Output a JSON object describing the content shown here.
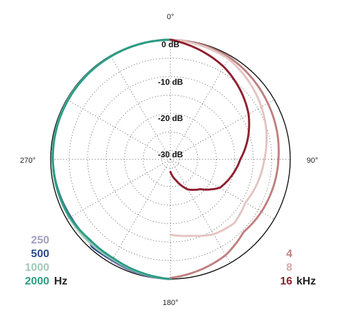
{
  "chart_data": {
    "type": "polar",
    "angle_labels": [
      "0°",
      "90°",
      "180°",
      "270°"
    ],
    "radial_labels": [
      "0 dB",
      "-10 dB",
      "-20 dB",
      "-30 dB"
    ],
    "radial_range_db": [
      -40,
      0
    ],
    "angle_step_deg": 30,
    "left_series_unit": "Hz",
    "right_series_unit": "kHz",
    "left_series": [
      {
        "label": "250",
        "color": "#9fa0c4",
        "points_deg_db": [
          [
            180,
            0
          ],
          [
            210,
            -0.7
          ],
          [
            225,
            -1.1
          ],
          [
            240,
            -1.3
          ],
          [
            270,
            -0.5
          ],
          [
            300,
            -0.3
          ],
          [
            330,
            -0.2
          ],
          [
            360,
            0
          ]
        ]
      },
      {
        "label": "500",
        "color": "#2a4a8c",
        "points_deg_db": [
          [
            180,
            0
          ],
          [
            210,
            -1.0
          ],
          [
            222,
            -0.6
          ],
          [
            225,
            -1.4
          ],
          [
            240,
            -1.2
          ],
          [
            270,
            -0.5
          ],
          [
            300,
            -0.3
          ],
          [
            330,
            -0.2
          ],
          [
            360,
            0
          ]
        ]
      },
      {
        "label": "1000",
        "color": "#9ecbb9",
        "points_deg_db": [
          [
            180,
            0
          ],
          [
            210,
            -1.2
          ],
          [
            225,
            -1.0
          ],
          [
            240,
            -0.8
          ],
          [
            270,
            -0.5
          ],
          [
            300,
            -0.3
          ],
          [
            330,
            -0.2
          ],
          [
            360,
            0
          ]
        ]
      },
      {
        "label": "2000",
        "color": "#2a9d84",
        "points_deg_db": [
          [
            180,
            0
          ],
          [
            210,
            -1.5
          ],
          [
            225,
            -1.6
          ],
          [
            240,
            -1.0
          ],
          [
            270,
            -0.6
          ],
          [
            300,
            -0.4
          ],
          [
            330,
            -0.2
          ],
          [
            360,
            0
          ]
        ]
      }
    ],
    "right_series": [
      {
        "label": "4",
        "color": "#c08080",
        "points_deg_db": [
          [
            0,
            0
          ],
          [
            30,
            -0.5
          ],
          [
            60,
            -2.0
          ],
          [
            90,
            -3.2
          ],
          [
            120,
            -4.0
          ],
          [
            135,
            -4.5
          ],
          [
            150,
            -2.5
          ],
          [
            180,
            -0.3
          ]
        ]
      },
      {
        "label": "8",
        "color": "#e3c4c1",
        "points_deg_db": [
          [
            0,
            0
          ],
          [
            30,
            -1.0
          ],
          [
            60,
            -4.0
          ],
          [
            90,
            -7.0
          ],
          [
            120,
            -9.0
          ],
          [
            135,
            -8.0
          ],
          [
            150,
            -9.0
          ],
          [
            165,
            -11.0
          ],
          [
            180,
            -12.0
          ]
        ]
      },
      {
        "label": "16",
        "color": "#8f1f2f",
        "points_deg_db": [
          [
            0,
            0
          ],
          [
            30,
            -3.5
          ],
          [
            60,
            -8.0
          ],
          [
            90,
            -13.5
          ],
          [
            120,
            -17.0
          ],
          [
            135,
            -21.0
          ],
          [
            150,
            -23.0
          ],
          [
            165,
            -26.5
          ],
          [
            180,
            -29.0
          ]
        ]
      }
    ]
  }
}
